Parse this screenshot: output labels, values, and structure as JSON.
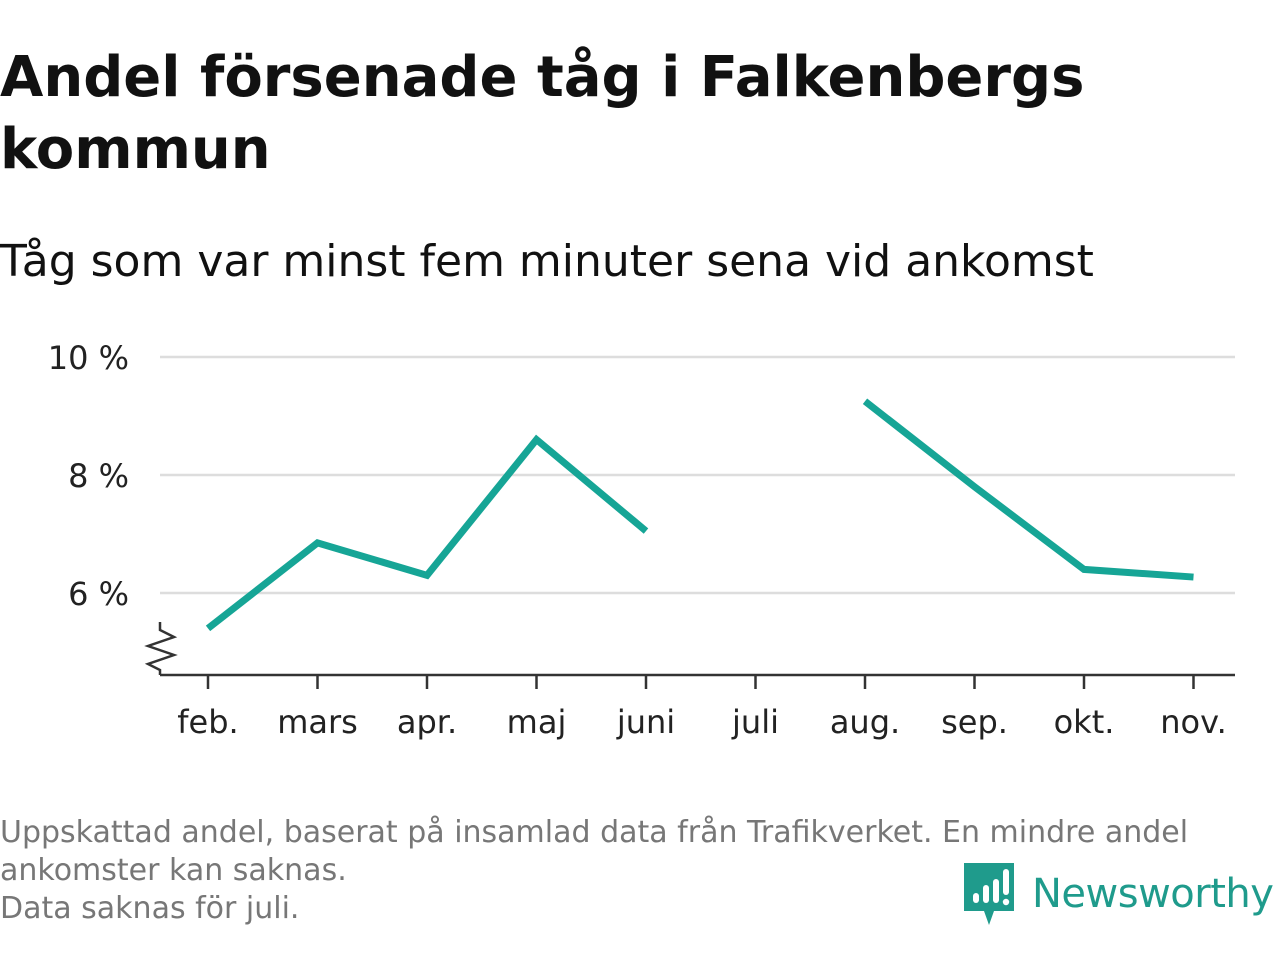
{
  "header": {
    "title": "Andel försenade tåg i Falkenbergs kommun",
    "subtitle": "Tåg som var minst fem minuter sena vid ankomst"
  },
  "chart_data": {
    "type": "line",
    "title": "Andel försenade tåg i Falkenbergs kommun",
    "subtitle": "Tåg som var minst fem minuter sena vid ankomst",
    "categories": [
      "feb.",
      "mars",
      "apr.",
      "maj",
      "juni",
      "juli",
      "aug.",
      "sep.",
      "okt.",
      "nov."
    ],
    "series": [
      {
        "values": [
          5.4,
          6.85,
          6.3,
          8.6,
          7.05,
          null,
          9.25,
          7.8,
          6.4,
          6.27
        ]
      }
    ],
    "y_ticks": [
      6,
      8,
      10
    ],
    "y_tick_labels": [
      "6 %",
      "8 %",
      "10 %"
    ],
    "ylim": [
      4.65,
      10
    ],
    "y_axis_break": true,
    "grid": true,
    "legend": "none",
    "colors": {
      "line": "#16a596",
      "grid": "#dddddd",
      "axis": "#333333"
    }
  },
  "footnote": {
    "lines": [
      "Uppskattad andel, baserat på insamlad data från Trafikverket. En mindre andel",
      "ankomster kan saknas.",
      "Data saknas för juli."
    ]
  },
  "brand": {
    "name": "Newsworthy",
    "icon": "newsworthy-logo-icon",
    "color": "#1f9b8c"
  }
}
